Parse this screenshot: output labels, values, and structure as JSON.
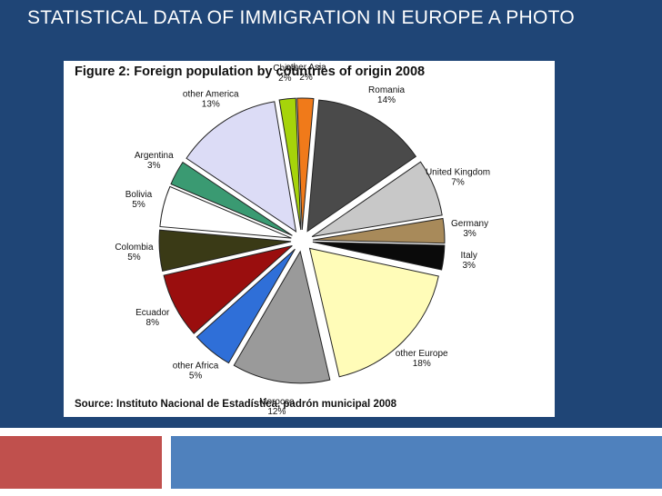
{
  "slide": {
    "title": "STATISTICAL DATA OF IMMIGRATION IN EUROPE A PHOTO"
  },
  "figure": {
    "title": "Figure 2: Foreign population by countries of origin 2008",
    "source": "Source: Instituto Nacional de Estadística, padrón municipal 2008"
  },
  "chart_data": {
    "type": "pie",
    "title": "Figure 2: Foreign population by countries of origin 2008",
    "exploded": true,
    "slices": [
      {
        "label": "Romania",
        "pct_label": "14%",
        "value": 14,
        "color": "#4a4a4a"
      },
      {
        "label": "United Kingdom",
        "pct_label": "7%",
        "value": 7,
        "color": "#c8c8c8"
      },
      {
        "label": "Germany",
        "pct_label": "3%",
        "value": 3,
        "color": "#a88a5a"
      },
      {
        "label": "Italy",
        "pct_label": "3%",
        "value": 3,
        "color": "#0a0a0a"
      },
      {
        "label": "other Europe",
        "pct_label": "18%",
        "value": 18,
        "color": "#fffcb8"
      },
      {
        "label": "Morocco",
        "pct_label": "12%",
        "value": 12,
        "color": "#9a9a9a"
      },
      {
        "label": "other Africa",
        "pct_label": "5%",
        "value": 5,
        "color": "#2f6fd8"
      },
      {
        "label": "Ecuador",
        "pct_label": "8%",
        "value": 8,
        "color": "#9a0e0e"
      },
      {
        "label": "Colombia",
        "pct_label": "5%",
        "value": 5,
        "color": "#3a3a16"
      },
      {
        "label": "Bolivia",
        "pct_label": "5%",
        "value": 5,
        "color": "#ffffff"
      },
      {
        "label": "Argentina",
        "pct_label": "3%",
        "value": 3,
        "color": "#3a9a72"
      },
      {
        "label": "other America",
        "pct_label": "13%",
        "value": 13,
        "color": "#dcdcf6"
      },
      {
        "label": "China",
        "pct_label": "2%",
        "value": 2,
        "color": "#a6d40a"
      },
      {
        "label": "other Asia",
        "pct_label": "2%",
        "value": 2,
        "color": "#f07a1a"
      }
    ]
  }
}
